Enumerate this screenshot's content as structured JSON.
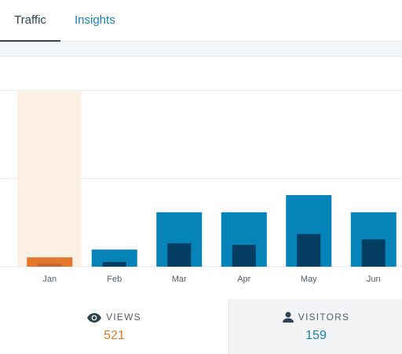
{
  "tabs": [
    {
      "label": "Traffic",
      "active": true
    },
    {
      "label": "Insights",
      "active": false
    }
  ],
  "colors": {
    "active_bar": "#e4782e",
    "active_highlight": "#fcefe4",
    "bar_views": "#0684b9",
    "bar_visitors": "#043d62",
    "views_value": "#e27d2c",
    "visitors_value": "#1a82b8"
  },
  "chart_data": {
    "type": "bar",
    "categories": [
      "Jan",
      "Feb",
      "Mar",
      "Apr",
      "May",
      "Jun"
    ],
    "series": [
      {
        "name": "Views",
        "values": [
          12,
          22,
          70,
          70,
          92,
          70
        ]
      },
      {
        "name": "Visitors",
        "values": [
          4,
          6,
          30,
          28,
          42,
          35
        ]
      }
    ],
    "selected_category": "Jan",
    "ylim": [
      0,
      270
    ],
    "grid": true
  },
  "stats": {
    "views": {
      "label": "VIEWS",
      "value": "521",
      "icon": "eye-icon"
    },
    "visitors": {
      "label": "VISITORS",
      "value": "159",
      "icon": "person-icon"
    }
  }
}
